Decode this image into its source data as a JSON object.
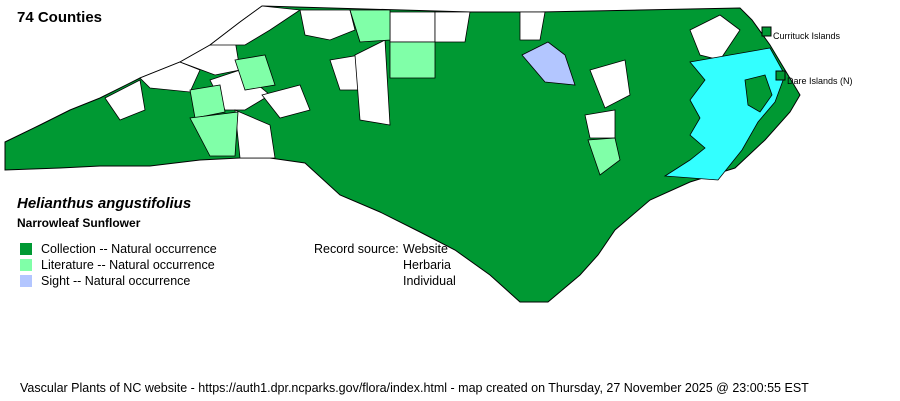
{
  "county_count": "74 Counties",
  "species": {
    "scientific_name": "Helianthus angustifolius",
    "common_name": "Narrowleaf Sunflower"
  },
  "legend": [
    {
      "label": "Collection -- Natural occurrence",
      "color": "#009933"
    },
    {
      "label": "Literature -- Natural occurrence",
      "color": "#80ffa8"
    },
    {
      "label": "Sight -- Natural occurrence",
      "color": "#b3c6ff"
    }
  ],
  "record_source": {
    "label": "Record source:",
    "values": [
      "Website",
      "Herbaria",
      "Individual"
    ]
  },
  "islands": [
    "Currituck Islands",
    "Dare Islands (N)"
  ],
  "colors": {
    "water": "#33ffff",
    "no_record": "#ffffff"
  },
  "footer": "Vascular Plants of NC website - https://auth1.dpr.ncparks.gov/flora/index.html - map created on Thursday, 27 November 2025 @ 23:00:55 EST"
}
